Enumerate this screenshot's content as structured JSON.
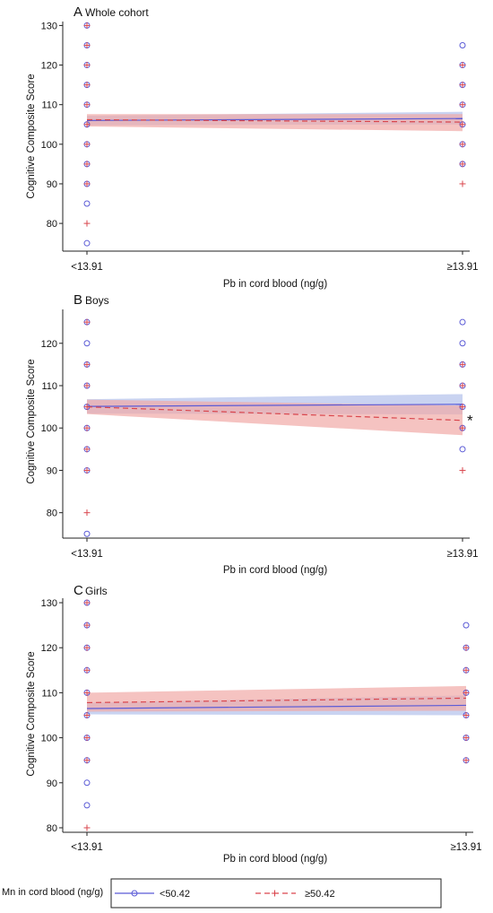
{
  "chart_data": [
    {
      "type": "line",
      "panel_letter": "A",
      "title": "Whole cohort",
      "xlabel": "Pb in cord blood (ng/g)",
      "ylabel": "Cognitive Composite Score",
      "categories": [
        "<13.91",
        "≥13.91"
      ],
      "ylim": [
        73,
        131
      ],
      "yticks": [
        80,
        90,
        100,
        110,
        120,
        130
      ],
      "annotation": "",
      "series": [
        {
          "name": "<50.42",
          "line_values": [
            106.0,
            106.5
          ],
          "ci_low": [
            104.8,
            105.0
          ],
          "ci_high": [
            107.2,
            108.2
          ],
          "points": {
            "<13.91": [
              75,
              85,
              90,
              95,
              100,
              105,
              110,
              115,
              120,
              125,
              130
            ],
            "≥13.91": [
              95,
              100,
              105,
              110,
              115,
              120,
              125
            ]
          }
        },
        {
          "name": "≥50.42",
          "line_values": [
            106.2,
            105.6
          ],
          "ci_low": [
            104.5,
            103.3
          ],
          "ci_high": [
            107.6,
            107.6
          ],
          "points": {
            "<13.91": [
              80,
              90,
              95,
              100,
              105,
              110,
              115,
              120,
              125,
              130
            ],
            "≥13.91": [
              90,
              95,
              100,
              105,
              110,
              115,
              120
            ]
          }
        }
      ]
    },
    {
      "type": "line",
      "panel_letter": "B",
      "title": "Boys",
      "xlabel": "Pb in cord blood (ng/g)",
      "ylabel": "Cognitive Composite Score",
      "categories": [
        "<13.91",
        "≥13.91"
      ],
      "ylim": [
        74,
        128
      ],
      "yticks": [
        80,
        90,
        100,
        110,
        120
      ],
      "annotation": "*",
      "series": [
        {
          "name": "<50.42",
          "line_values": [
            105.1,
            105.6
          ],
          "ci_low": [
            103.4,
            103.2
          ],
          "ci_high": [
            106.8,
            108.0
          ],
          "points": {
            "<13.91": [
              75,
              90,
              95,
              100,
              105,
              110,
              115,
              120,
              125
            ],
            "≥13.91": [
              95,
              100,
              105,
              110,
              115,
              120,
              125
            ]
          }
        },
        {
          "name": "≥50.42",
          "line_values": [
            105.0,
            101.8
          ],
          "ci_low": [
            103.3,
            98.3
          ],
          "ci_high": [
            106.7,
            105.3
          ],
          "points": {
            "<13.91": [
              80,
              90,
              95,
              100,
              105,
              110,
              115,
              125
            ],
            "≥13.91": [
              90,
              100,
              105,
              110,
              115
            ]
          }
        }
      ]
    },
    {
      "type": "line",
      "panel_letter": "C",
      "title": "Girls",
      "xlabel": "Pb in cord blood (ng/g)",
      "ylabel": "Cognitive Composite Score",
      "categories": [
        "<13.91",
        "≥13.91"
      ],
      "ylim": [
        79,
        131
      ],
      "yticks": [
        80,
        90,
        100,
        110,
        120,
        130
      ],
      "annotation": "",
      "series": [
        {
          "name": "<50.42",
          "line_values": [
            106.5,
            107.2
          ],
          "ci_low": [
            105.2,
            105.0
          ],
          "ci_high": [
            107.8,
            109.4
          ],
          "points": {
            "<13.91": [
              85,
              90,
              95,
              100,
              105,
              110,
              115,
              120,
              125,
              130
            ],
            "≥13.91": [
              95,
              100,
              105,
              110,
              115,
              120,
              125
            ]
          }
        },
        {
          "name": "≥50.42",
          "line_values": [
            107.8,
            108.8
          ],
          "ci_low": [
            105.8,
            106.0
          ],
          "ci_high": [
            110.0,
            111.5
          ],
          "points": {
            "<13.91": [
              80,
              95,
              100,
              105,
              110,
              115,
              120,
              125,
              130
            ],
            "≥13.91": [
              95,
              100,
              105,
              110,
              115,
              120
            ]
          }
        }
      ]
    }
  ],
  "legend": {
    "title": "Mn in cord blood (ng/g)",
    "items": [
      "<50.42",
      "≥50.42"
    ]
  },
  "colors": {
    "low_mn": "#5b5bd6",
    "low_mn_band": "#b7c4ec",
    "high_mn": "#d9464d",
    "high_mn_band": "#f1aaa6",
    "axis": "#222222"
  }
}
